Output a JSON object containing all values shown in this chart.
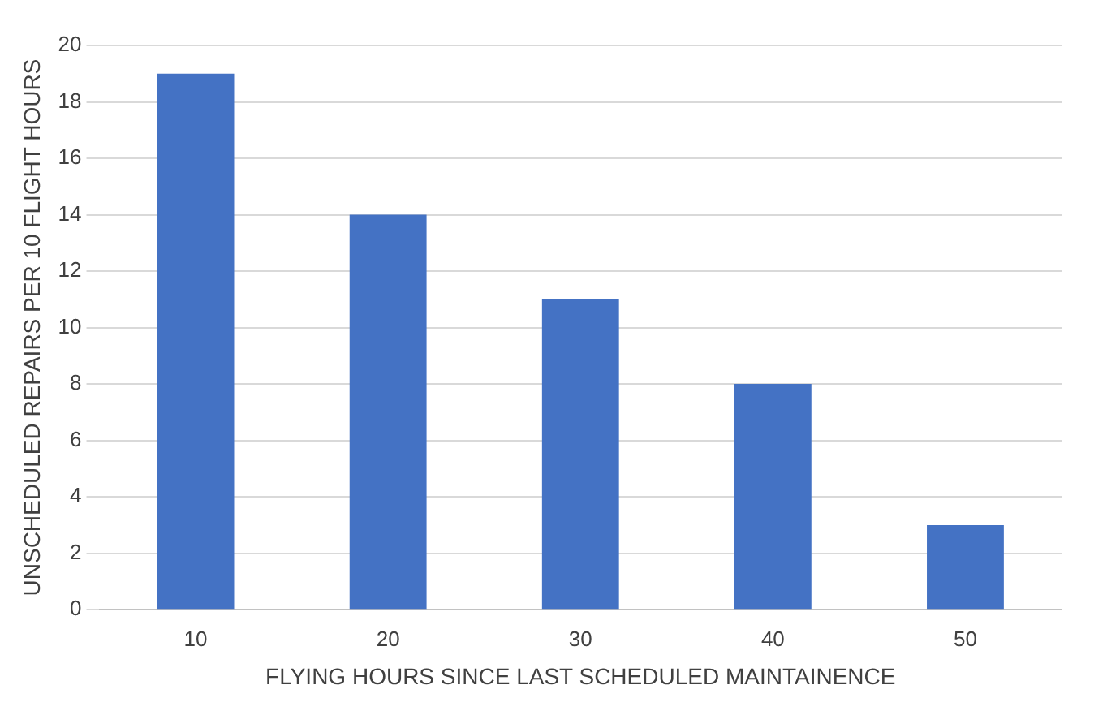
{
  "chart_data": {
    "type": "bar",
    "xlabel": "FLYING HOURS SINCE LAST SCHEDULED MAINTAINENCE",
    "ylabel": "UNSCHEDULED REPAIRS PER 10 FLIGHT HOURS",
    "categories": [
      "10",
      "20",
      "30",
      "40",
      "50"
    ],
    "values": [
      19,
      14,
      11,
      8,
      3
    ],
    "color": "#4472c4",
    "ylim": [
      0,
      20
    ],
    "yticks": [
      0,
      2,
      4,
      6,
      8,
      10,
      12,
      14,
      16,
      18,
      20
    ],
    "grid": "y",
    "legend": false
  }
}
